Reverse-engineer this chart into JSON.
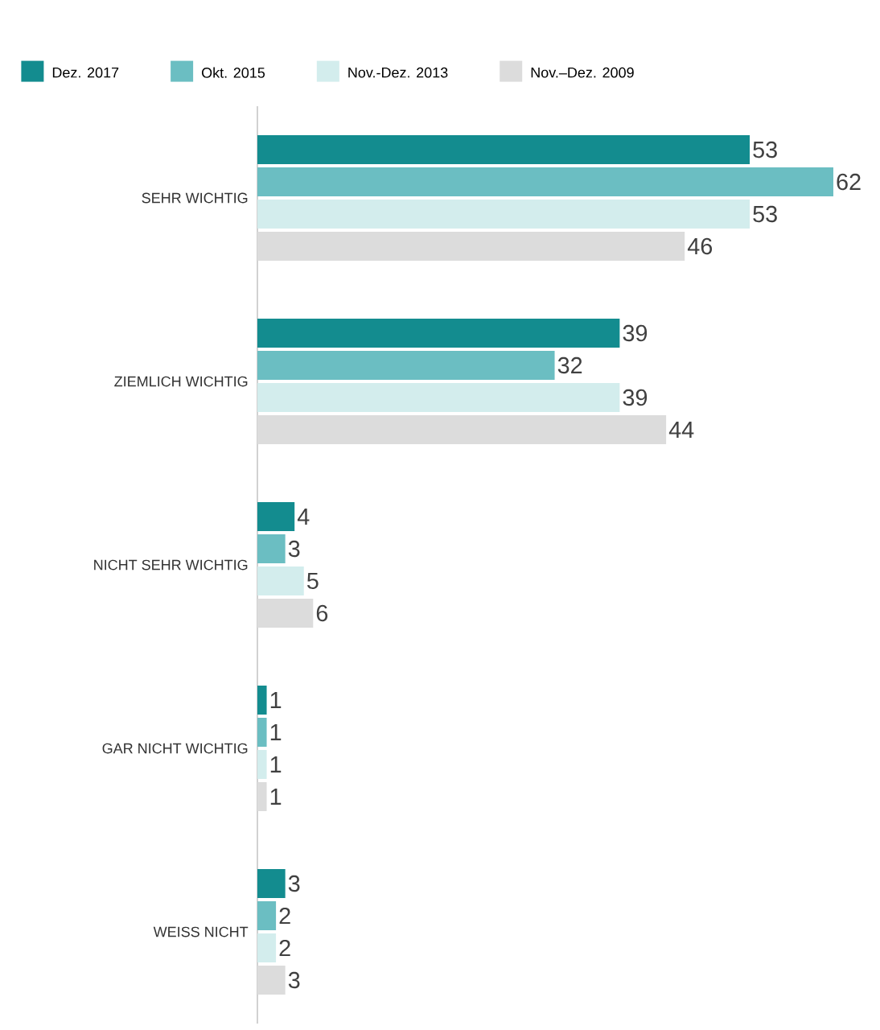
{
  "chart_data": {
    "type": "bar",
    "orientation": "horizontal",
    "categories": [
      "SEHR WICHTIG",
      "ZIEMLICH WICHTIG",
      "NICHT SEHR WICHTIG",
      "GAR NICHT WICHTIG",
      "WEISS NICHT"
    ],
    "series": [
      {
        "name": "Dez. 2017",
        "color": "#138c8f",
        "values": [
          53,
          39,
          4,
          1,
          3
        ]
      },
      {
        "name": "Okt. 2015",
        "color": "#6bbec2",
        "values": [
          62,
          32,
          3,
          1,
          2
        ]
      },
      {
        "name": "Nov.-Dez. 2013",
        "color": "#d3eded",
        "values": [
          53,
          39,
          5,
          1,
          2
        ]
      },
      {
        "name": "Nov.–Dez. 2009",
        "color": "#dcdcdc",
        "values": [
          46,
          44,
          6,
          1,
          3
        ]
      }
    ],
    "data_labels": true,
    "legend": "top"
  }
}
